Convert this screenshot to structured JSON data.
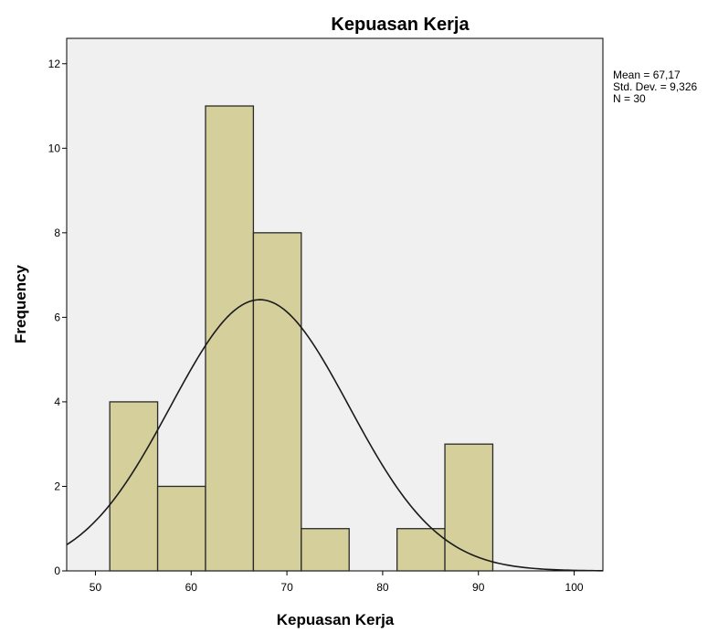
{
  "chart_data": {
    "type": "bar",
    "subtype": "histogram",
    "title": "Kepuasan Kerja",
    "xlabel": "Kepuasan Kerja",
    "ylabel": "Frequency",
    "xlim": [
      47,
      103
    ],
    "ylim": [
      0,
      12.6
    ],
    "x_ticks": [
      50,
      60,
      70,
      80,
      90,
      100
    ],
    "y_ticks": [
      0,
      2,
      4,
      6,
      8,
      10,
      12
    ],
    "bins": [
      {
        "from": 51.5,
        "to": 56.5,
        "count": 4
      },
      {
        "from": 56.5,
        "to": 61.5,
        "count": 2
      },
      {
        "from": 61.5,
        "to": 66.5,
        "count": 11
      },
      {
        "from": 66.5,
        "to": 71.5,
        "count": 8
      },
      {
        "from": 71.5,
        "to": 76.5,
        "count": 1
      },
      {
        "from": 76.5,
        "to": 81.5,
        "count": 0
      },
      {
        "from": 81.5,
        "to": 86.5,
        "count": 1
      },
      {
        "from": 86.5,
        "to": 91.5,
        "count": 3
      }
    ],
    "normal_curve": {
      "mean": 67.17,
      "sd": 9.326,
      "n": 30,
      "bin_width": 5
    },
    "stats": [
      "Mean = 67,17",
      "Std. Dev. = 9,326",
      "N = 30"
    ],
    "grid": false,
    "colors": {
      "bar_fill": "#d4cf9b",
      "bar_stroke": "#2a2a2a",
      "plot_background": "#f0f0f0",
      "curve": "#1a1a1a"
    }
  }
}
